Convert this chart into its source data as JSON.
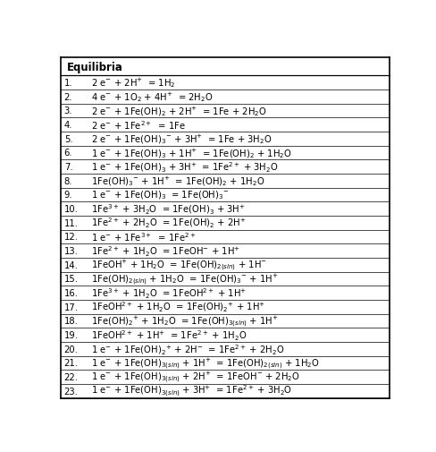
{
  "title": "Equilibria",
  "rows": [
    [
      "1.",
      "2 e$^{-}$ + 2H$^{+}$  = 1H$_{2}$"
    ],
    [
      "2.",
      "4 e$^{-}$ + 1O$_{2}$ + 4H$^{+}$  = 2H$_{2}$O"
    ],
    [
      "3.",
      "2 e$^{-}$ + 1Fe(OH)$_{2}$ + 2H$^{+}$  = 1Fe + 2H$_{2}$O"
    ],
    [
      "4.",
      "2 e$^{-}$ + 1Fe$^{2+}$  = 1Fe"
    ],
    [
      "5.",
      "2 e$^{-}$ + 1Fe(OH)$_{3}$$^{-}$ + 3H$^{+}$  = 1Fe + 3H$_{2}$O"
    ],
    [
      "6.",
      "1 e$^{-}$ + 1Fe(OH)$_{3}$ + 1H$^{+}$  = 1Fe(OH)$_{2}$ + 1H$_{2}$O"
    ],
    [
      "7.",
      "1 e$^{-}$ + 1Fe(OH)$_{3}$ + 3H$^{+}$  = 1Fe$^{2+}$ + 3H$_{2}$O"
    ],
    [
      "8.",
      "1Fe(OH)$_{3}$$^{-}$ + 1H$^{+}$  = 1Fe(OH)$_{2}$ + 1H$_{2}$O"
    ],
    [
      "9.",
      "1 e$^{-}$ + 1Fe(OH)$_{3}$  = 1Fe(OH)$_{3}$$^{-}$"
    ],
    [
      "10.",
      "1Fe$^{3+}$ + 3H$_{2}$O  = 1Fe(OH)$_{3}$ + 3H$^{+}$"
    ],
    [
      "11.",
      "1Fe$^{2+}$ + 2H$_{2}$O  = 1Fe(OH)$_{2}$ + 2H$^{+}$"
    ],
    [
      "12.",
      "1 e$^{-}$ + 1Fe$^{3+}$  = 1Fe$^{2+}$"
    ],
    [
      "13.",
      "1Fe$^{2+}$ + 1H$_{2}$O  = 1FeOH$^{-}$ + 1H$^{+}$"
    ],
    [
      "14.",
      "1FeOH$^{+}$ + 1H$_{2}$O  = 1Fe(OH)$_{2(sln)}$ + 1H$^{-}$"
    ],
    [
      "15.",
      "1Fe(OH)$_{2(sln)}$ + 1H$_{2}$O  = 1Fe(OH)$_{3}$$^{-}$ + 1H$^{+}$"
    ],
    [
      "16.",
      "1Fe$^{3+}$ + 1H$_{2}$O  = 1FeOH$^{2+}$ + 1H$^{+}$"
    ],
    [
      "17.",
      "1FeOH$^{2+}$ + 1H$_{2}$O  = 1Fe(OH)$_{2}$$^{+}$ + 1H$^{+}$"
    ],
    [
      "18.",
      "1Fe(OH)$_{2}$$^{+}$ + 1H$_{2}$O  = 1Fe(OH)$_{3(sln)}$ + 1H$^{+}$"
    ],
    [
      "19.",
      "1FeOH$^{2+}$ + 1H$^{+}$  = 1Fe$^{2+}$ + 1H$_{2}$O"
    ],
    [
      "20.",
      "1 e$^{-}$ + 1Fe(OH)$_{2}$$^{+}$ + 2H$^{-}$  = 1Fe$^{2+}$ + 2H$_{2}$O"
    ],
    [
      "21.",
      "1 e$^{-}$ + 1Fe(OH)$_{3(sln)}$ + 1H$^{+}$  = 1Fe(OH)$_{2(sln)}$ + 1H$_{2}$O"
    ],
    [
      "22.",
      "1 e$^{-}$ + 1Fe(OH)$_{3(sln)}$ + 2H$^{+}$  = 1FeOH$^{-}$ + 2H$_{2}$O"
    ],
    [
      "23.",
      "1 e$^{-}$ + 1Fe(OH)$_{3(sln)}$ + 3H$^{+}$  = 1Fe$^{2+}$ + 3H$_{2}$O"
    ]
  ],
  "bg_color": "#ffffff",
  "border_color": "#000000",
  "text_color": "#000000",
  "header_fontsize": 8.5,
  "row_fontsize": 7.2,
  "fig_width": 4.89,
  "fig_height": 5.06,
  "dpi": 100
}
